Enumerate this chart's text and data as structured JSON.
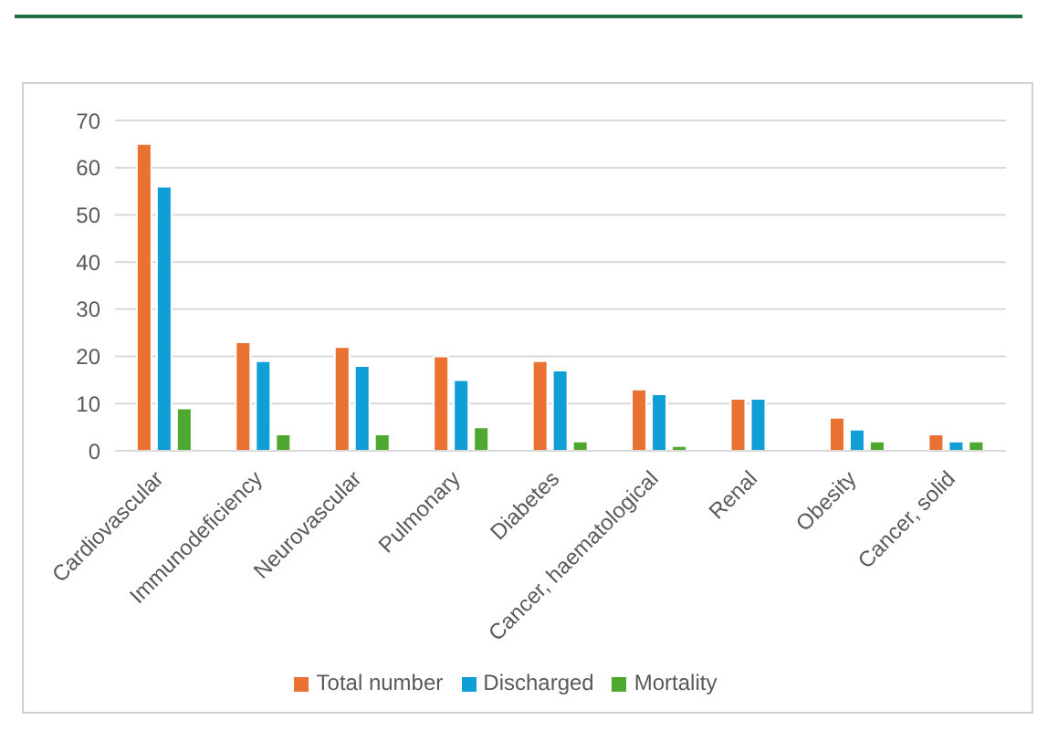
{
  "chart_data": {
    "type": "bar",
    "categories": [
      "Cardiovascular",
      "Immunodeficiency",
      "Neurovascular",
      "Pulmonary",
      "Diabetes",
      "Cancer, haematological",
      "Renal",
      "Obesity",
      "Cancer, solid"
    ],
    "series": [
      {
        "name": "Total number",
        "color": "#e97132",
        "values": [
          65,
          23,
          22,
          20,
          19,
          13,
          11,
          7,
          3.5
        ]
      },
      {
        "name": "Discharged",
        "color": "#0f9ed5",
        "values": [
          56,
          19,
          18,
          15,
          17,
          12,
          11,
          4.5,
          2
        ]
      },
      {
        "name": "Mortality",
        "color": "#4ea72e",
        "values": [
          9,
          3.5,
          3.5,
          5,
          2,
          1,
          0,
          2,
          2
        ]
      }
    ],
    "ylim": [
      0,
      70
    ],
    "yticks": [
      0,
      10,
      20,
      30,
      40,
      50,
      60,
      70
    ],
    "grid": "y",
    "legend": "bottom"
  }
}
